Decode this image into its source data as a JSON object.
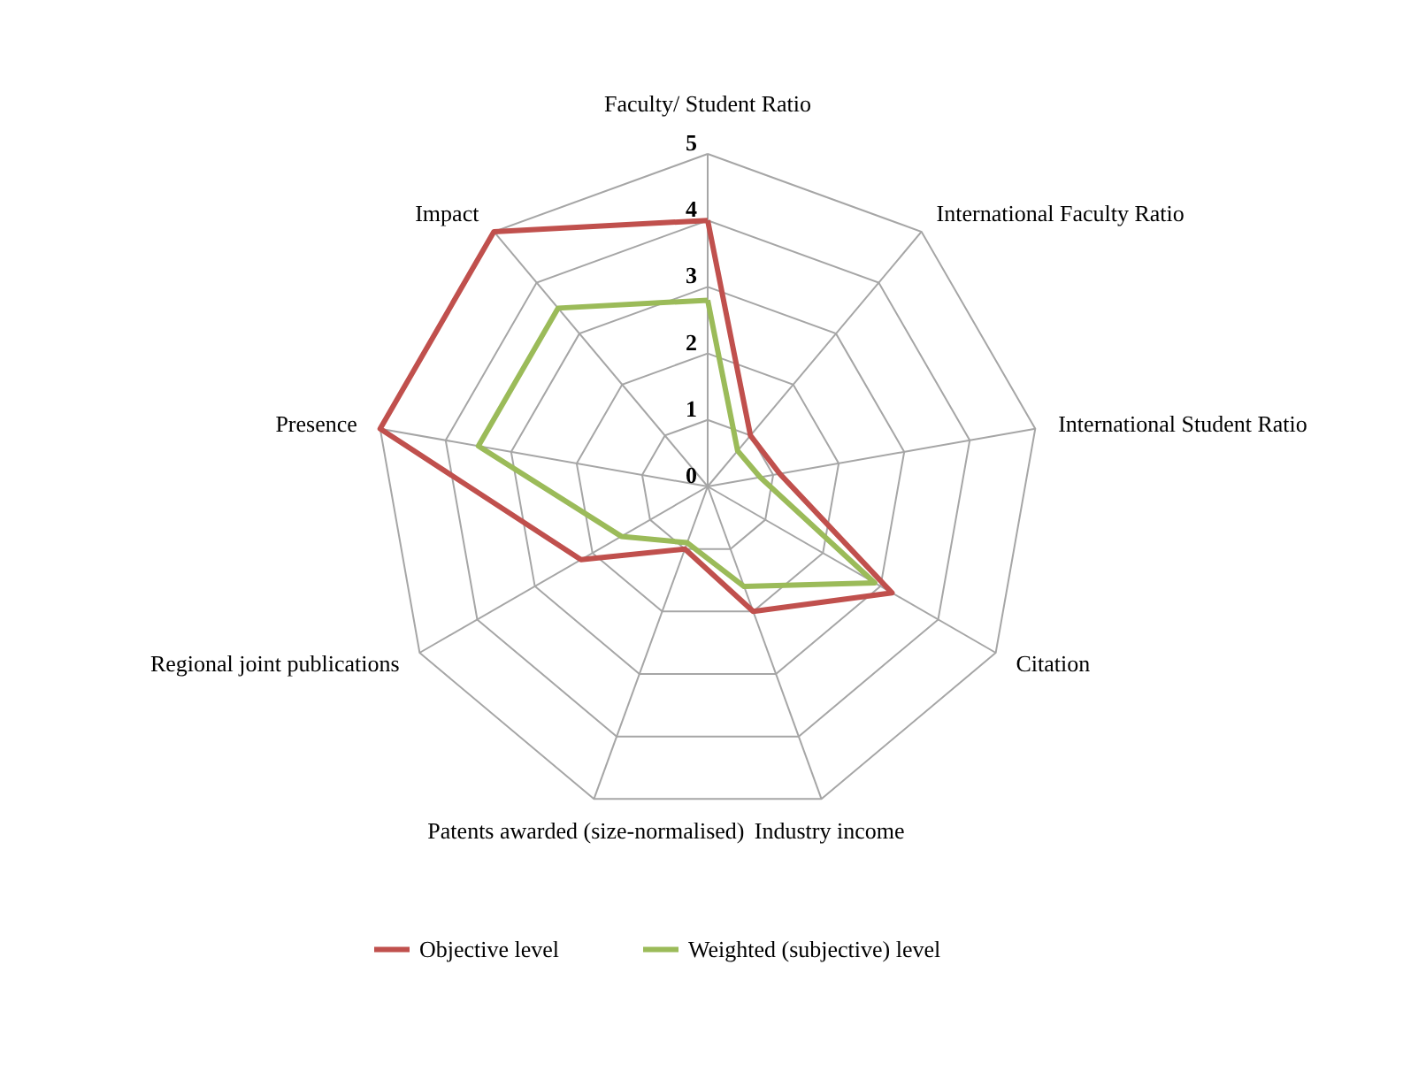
{
  "chart_data": {
    "type": "radar",
    "categories": [
      "Faculty/ Student Ratio",
      "International Faculty Ratio",
      "International Student Ratio",
      "Citation",
      "Industry income",
      "Patents awarded (size-normalised)",
      "Regional joint publications",
      "Presence",
      "Impact"
    ],
    "series": [
      {
        "name": "Objective level",
        "color": "#c0504d",
        "values": [
          4.0,
          1.0,
          1.1,
          3.2,
          2.0,
          1.0,
          2.2,
          5.0,
          5.0
        ]
      },
      {
        "name": "Weighted (subjective) level",
        "color": "#9bbb59",
        "values": [
          2.8,
          0.7,
          0.8,
          2.9,
          1.6,
          0.9,
          1.5,
          3.5,
          3.5
        ]
      }
    ],
    "ylim": [
      0,
      5
    ],
    "yticks": [
      0,
      1,
      2,
      3,
      4,
      5
    ],
    "grid": true,
    "legend": "bottom"
  }
}
